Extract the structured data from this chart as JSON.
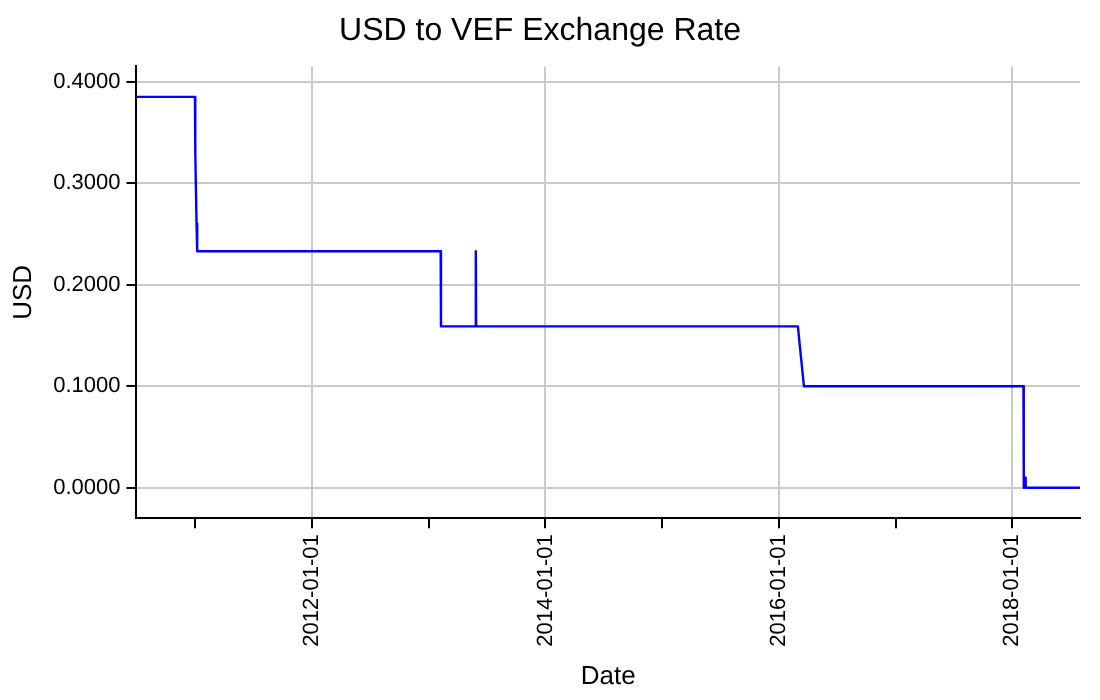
{
  "chart_data": {
    "type": "line",
    "title": "USD to VEF Exchange Rate",
    "xlabel": "Date",
    "ylabel": "USD",
    "x": [
      "2010-07-01",
      "2010-12-31",
      "2011-01-01",
      "2011-01-05",
      "2011-01-07",
      "2013-02-07",
      "2013-02-08",
      "2013-05-25",
      "2013-05-28",
      "2013-05-29",
      "2016-03-01",
      "2016-03-20",
      "2018-02-05",
      "2018-02-06",
      "2018-02-10",
      "2018-02-12",
      "2018-08-01"
    ],
    "series": [
      {
        "color": "#0000ff",
        "values": [
          0.385,
          0.385,
          0.33,
          0.26,
          0.233,
          0.233,
          0.159,
          0.159,
          0.233,
          0.159,
          0.159,
          0.1,
          0.1,
          0.0,
          0.01,
          0.0,
          0.0
        ]
      }
    ],
    "xlim": [
      "2010-07-01",
      "2018-08-01"
    ],
    "xticks": [
      {
        "value": "2011-01-01",
        "label": null
      },
      "2012-01-01",
      {
        "value": "2013-01-01",
        "label": null
      },
      "2014-01-01",
      {
        "value": "2015-01-01",
        "label": null
      },
      "2016-01-01",
      {
        "value": "2017-01-01",
        "label": null
      },
      "2018-01-01"
    ],
    "ylim": [
      -0.03,
      0.415
    ],
    "yticks": [
      {
        "value": 0,
        "label": "0.0000"
      },
      {
        "value": 0.1,
        "label": "0.1000"
      },
      {
        "value": 0.2,
        "label": "0.2000"
      },
      {
        "value": 0.3,
        "label": "0.3000"
      },
      {
        "value": 0.4,
        "label": "0.4000"
      }
    ],
    "grid": true,
    "legend": false,
    "marker": "none",
    "line_style": "solid"
  }
}
